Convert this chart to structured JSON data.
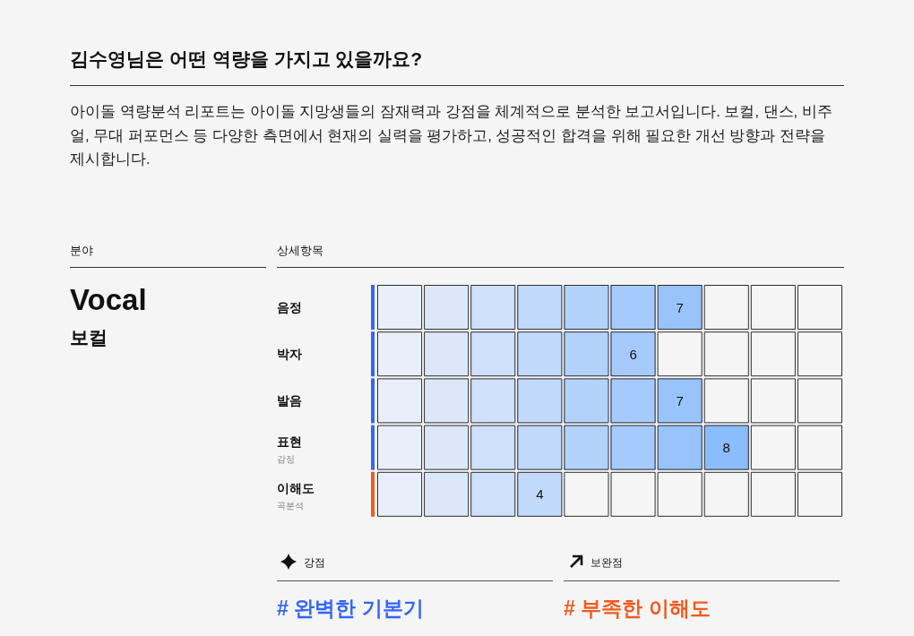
{
  "chart_data": {
    "type": "bar",
    "orientation": "horizontal",
    "title": "김수영님은 어떤 역량을 가지고 있을까요?",
    "subtitle": "아이돌 역량분석 리포트는 아이돌 지망생들의 잠재력과 강점을 체계적으로 분석한 보고서입니다. 보컬, 댄스, 비주얼, 무대 퍼포먼스 등 다양한 측면에서 현재의 실력을 평가하고, 성공적인 합격을 위해 필요한 개선 방향과 전략을 제시합니다.",
    "ylabel": "상세항목",
    "categories": [
      "음정",
      "박자",
      "발음",
      "표현\n감정",
      "이해도\n곡분석"
    ],
    "values": [
      7,
      6,
      7,
      8,
      4
    ],
    "colors": [
      "#3366ff",
      "#3366ff",
      "#3366ff",
      "#3366ff",
      "#f25a1f"
    ],
    "xlim": [
      0,
      10
    ],
    "data_labels": true,
    "annotations": [
      "분야",
      "Vocal",
      "보컬",
      "강점",
      "# 완벽한 기본기",
      "보완점",
      "# 부족한 이해도"
    ]
  }
}
